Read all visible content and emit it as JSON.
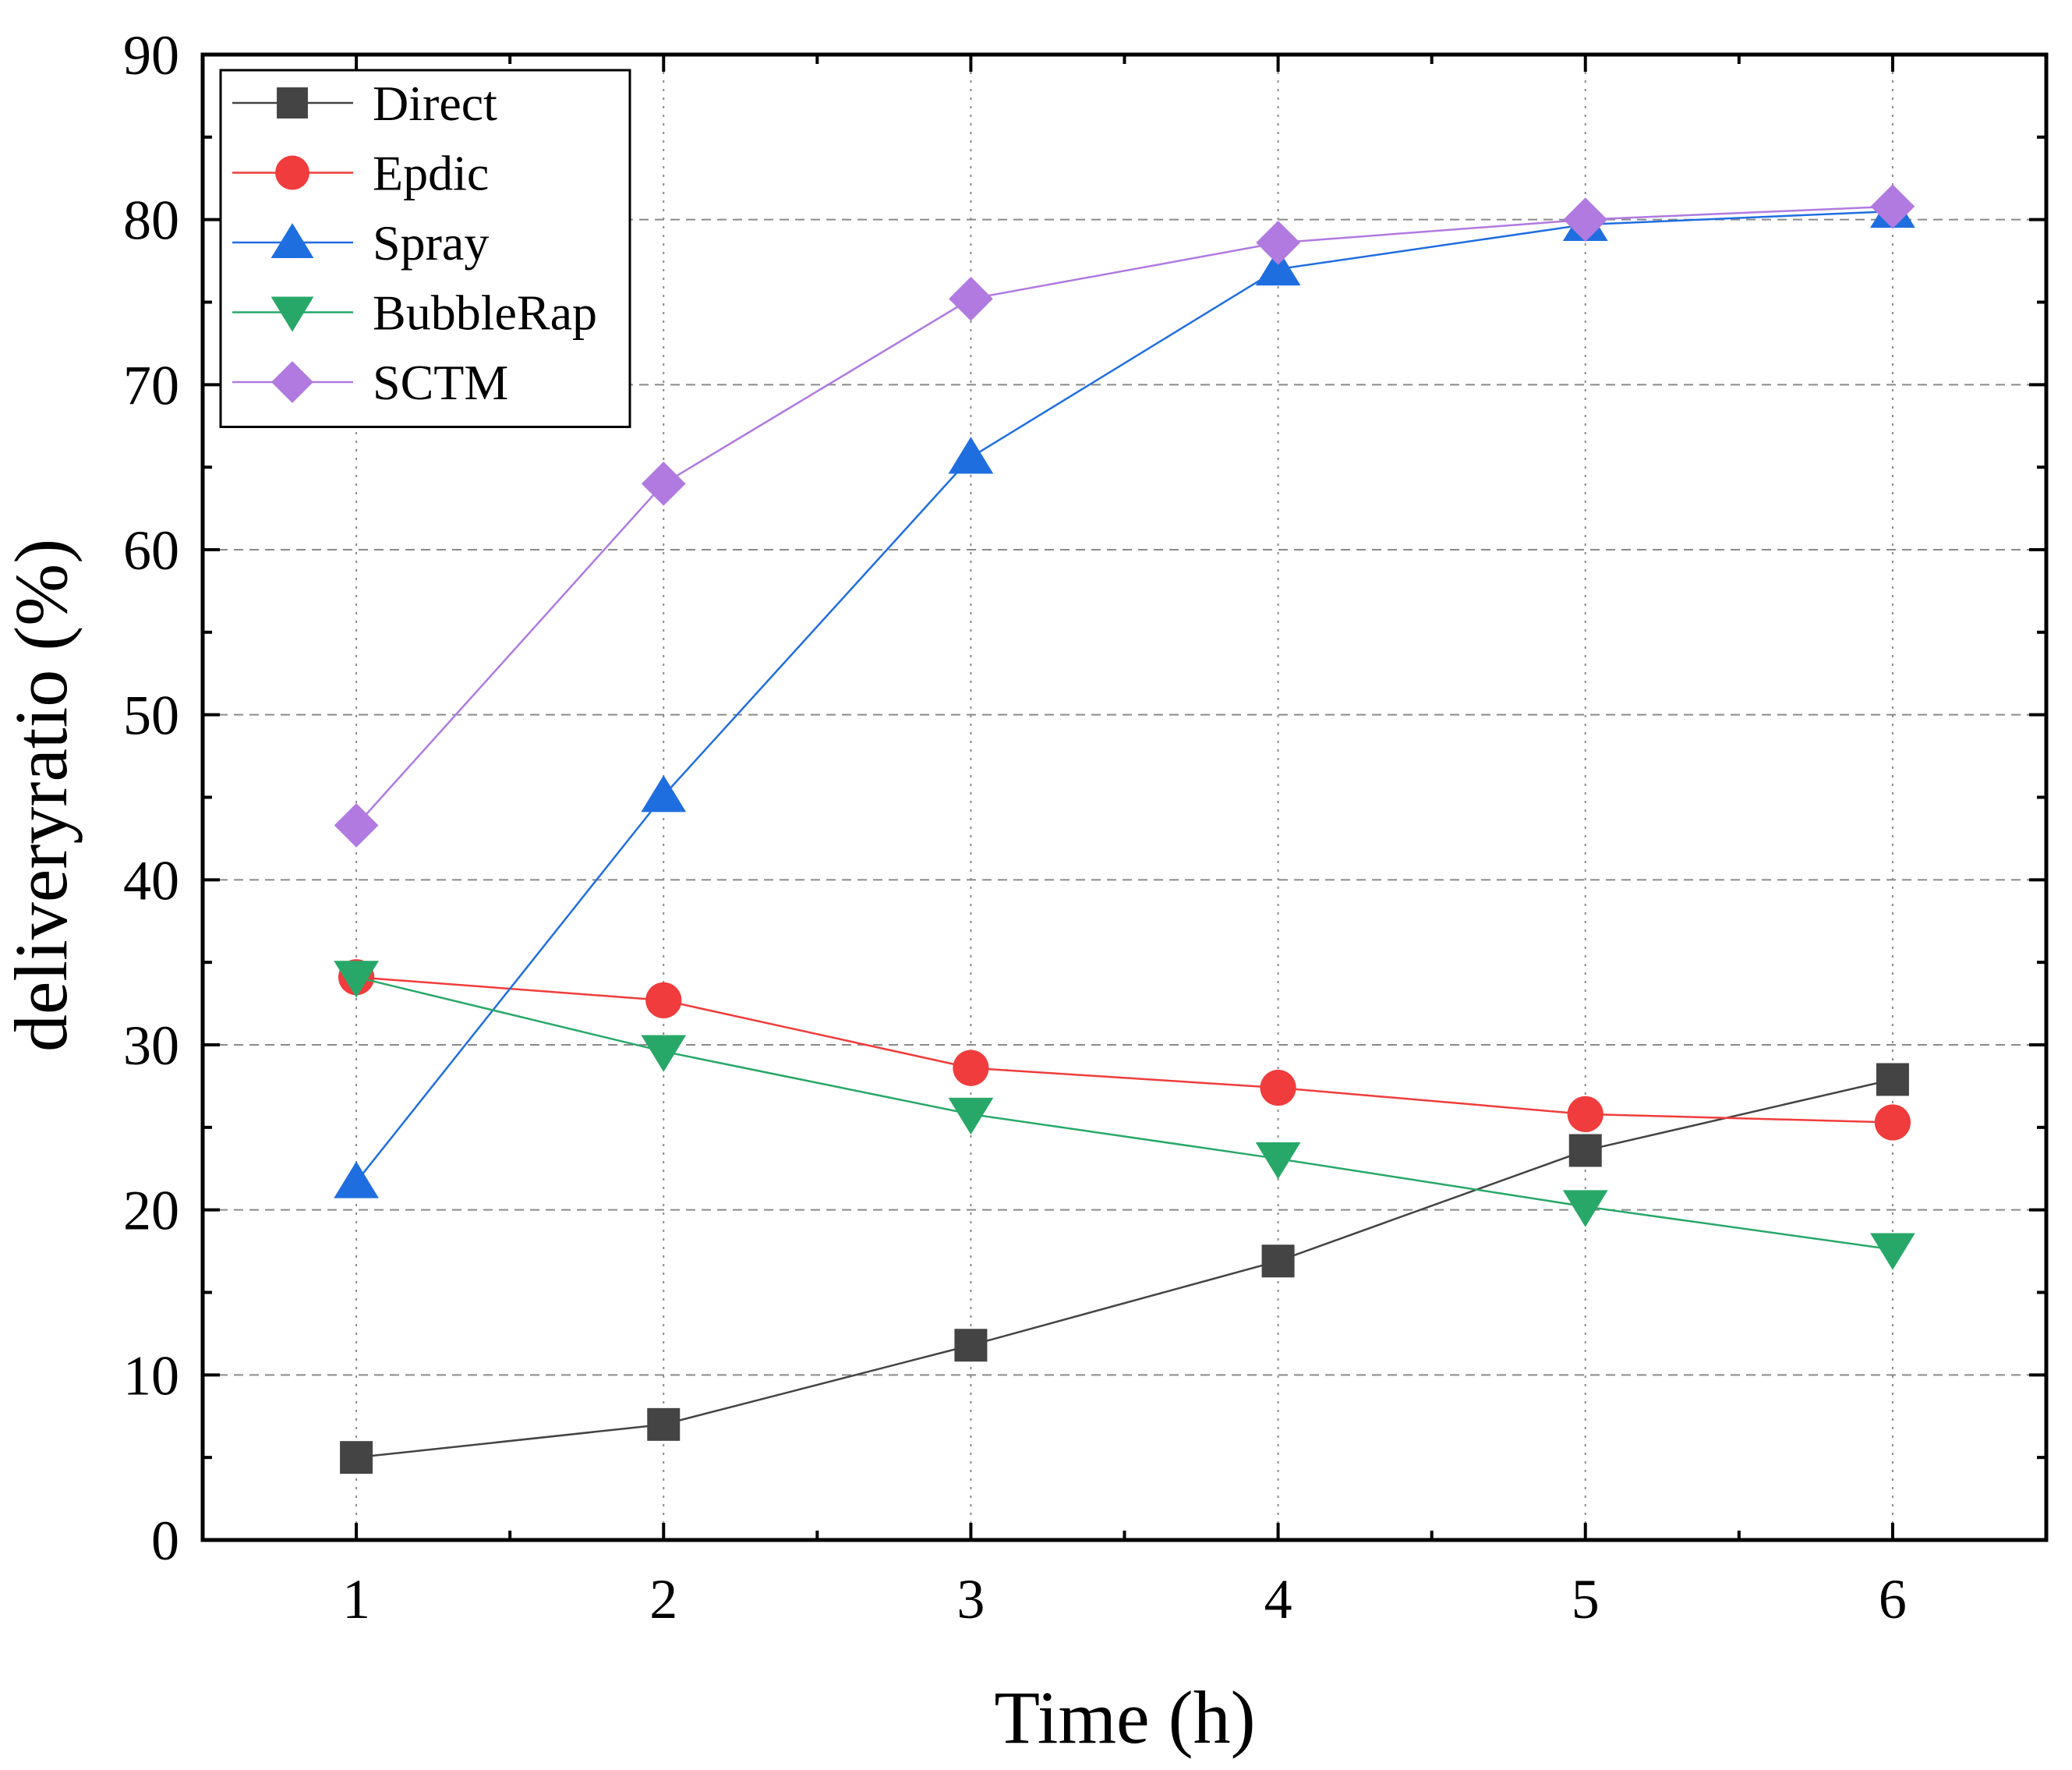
{
  "chart_data": {
    "type": "line",
    "title": "",
    "xlabel": "Time (h)",
    "ylabel": "deliveryratio (%)",
    "x": [
      1,
      2,
      3,
      4,
      5,
      6
    ],
    "xlim": [
      0.5,
      6.5
    ],
    "ylim": [
      0,
      90
    ],
    "xticks": [
      "1",
      "2",
      "3",
      "4",
      "5",
      "6"
    ],
    "yticks": [
      "0",
      "10",
      "20",
      "30",
      "40",
      "50",
      "60",
      "70",
      "80",
      "90"
    ],
    "grid": true,
    "legend_position": "top-left",
    "series": [
      {
        "name": "Direct",
        "color": "#444444",
        "marker": "square",
        "values": [
          5.0,
          7.0,
          11.8,
          16.9,
          23.6,
          27.9
        ]
      },
      {
        "name": "Epdic",
        "color": "#f03c3c",
        "marker": "circle",
        "values": [
          34.1,
          32.7,
          28.6,
          27.4,
          25.8,
          25.3
        ]
      },
      {
        "name": "Spray",
        "color": "#1f6ee0",
        "marker": "triangle-up",
        "values": [
          21.7,
          45.1,
          65.6,
          77.0,
          79.7,
          80.5
        ]
      },
      {
        "name": "BubbleRap",
        "color": "#28a868",
        "marker": "triangle-down",
        "values": [
          34.1,
          29.6,
          25.8,
          23.1,
          20.2,
          17.6
        ]
      },
      {
        "name": "SCTM",
        "color": "#b07ae0",
        "marker": "diamond",
        "values": [
          43.3,
          64.0,
          75.2,
          78.6,
          80.0,
          80.8
        ]
      }
    ]
  }
}
